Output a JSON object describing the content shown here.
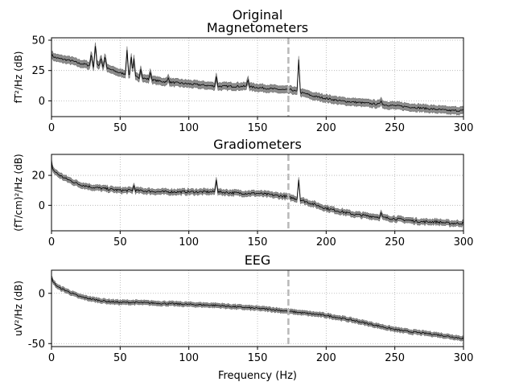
{
  "figure": {
    "suptitle": "Original",
    "xlabel": "Frequency (Hz)"
  },
  "chart_data": [
    {
      "type": "line",
      "title": "Magnetometers",
      "ylabel": "fT²/Hz (dB)",
      "xlim": [
        0,
        300
      ],
      "ylim": [
        -13,
        52
      ],
      "xticks": [
        0,
        50,
        100,
        150,
        200,
        250,
        300
      ],
      "yticks": [
        0,
        25,
        50
      ],
      "grid": true,
      "vline_x": 172.5,
      "x": [
        0,
        2,
        5,
        10,
        15,
        20,
        25,
        30,
        33,
        36,
        40,
        45,
        50,
        55,
        60,
        65,
        70,
        80,
        90,
        100,
        110,
        120,
        130,
        140,
        150,
        160,
        170,
        175,
        180,
        185,
        190,
        200,
        210,
        220,
        230,
        240,
        250,
        260,
        270,
        280,
        290,
        300
      ],
      "mean": [
        38,
        36,
        35,
        34,
        33,
        31,
        30,
        28,
        30,
        29,
        27,
        25,
        23,
        22,
        20,
        19,
        18,
        16,
        15,
        14,
        13,
        12,
        12,
        12,
        11,
        10,
        9,
        9,
        7,
        6,
        4,
        2,
        0,
        -1,
        -2,
        -3,
        -4,
        -5,
        -6,
        -7,
        -8,
        -8
      ],
      "spread": 3.0,
      "peaks": [
        [
          29,
          40
        ],
        [
          32,
          47
        ],
        [
          36,
          36
        ],
        [
          39,
          38
        ],
        [
          55,
          42
        ],
        [
          58,
          38
        ],
        [
          60,
          35
        ],
        [
          65,
          26
        ],
        [
          72,
          24
        ],
        [
          85,
          19
        ],
        [
          120,
          20
        ],
        [
          143,
          18
        ],
        [
          180,
          34
        ],
        [
          240,
          0
        ]
      ]
    },
    {
      "type": "line",
      "title": "Gradiometers",
      "ylabel": "(fT/cm)²/Hz (dB)",
      "xlim": [
        0,
        300
      ],
      "ylim": [
        -17,
        34
      ],
      "xticks": [
        0,
        50,
        100,
        150,
        200,
        250,
        300
      ],
      "yticks": [
        0,
        20
      ],
      "grid": true,
      "vline_x": 172.5,
      "x": [
        0,
        1,
        3,
        6,
        10,
        15,
        20,
        25,
        30,
        40,
        50,
        60,
        80,
        100,
        120,
        140,
        150,
        160,
        170,
        180,
        190,
        200,
        210,
        220,
        230,
        240,
        250,
        260,
        270,
        280,
        290,
        300
      ],
      "mean": [
        29,
        24,
        22,
        20,
        18,
        16,
        14,
        13,
        12,
        11,
        10,
        10,
        9,
        9,
        9,
        8,
        8,
        7,
        6,
        4,
        1,
        -2,
        -4,
        -6,
        -7,
        -8,
        -9,
        -10,
        -11,
        -11,
        -12,
        -12
      ],
      "spread": 1.8,
      "peaks": [
        [
          60,
          13
        ],
        [
          120,
          17
        ],
        [
          180,
          17
        ],
        [
          240,
          -5
        ]
      ]
    },
    {
      "type": "line",
      "title": "EEG",
      "ylabel": "uV²/Hz (dB)",
      "xlim": [
        0,
        300
      ],
      "ylim": [
        -53,
        23
      ],
      "xticks": [
        0,
        50,
        100,
        150,
        200,
        250,
        300
      ],
      "yticks": [
        -50,
        0
      ],
      "grid": true,
      "vline_x": 172.5,
      "x": [
        0,
        2,
        5,
        10,
        15,
        20,
        30,
        40,
        50,
        60,
        80,
        100,
        120,
        140,
        160,
        180,
        200,
        220,
        240,
        250,
        260,
        280,
        290,
        300
      ],
      "mean": [
        15,
        10,
        6,
        3,
        0,
        -3,
        -6,
        -8,
        -9,
        -9,
        -10,
        -11,
        -12,
        -14,
        -16,
        -19,
        -22,
        -27,
        -33,
        -36,
        -38,
        -41,
        -43,
        -45
      ],
      "spread": 2.2,
      "peaks": []
    }
  ]
}
